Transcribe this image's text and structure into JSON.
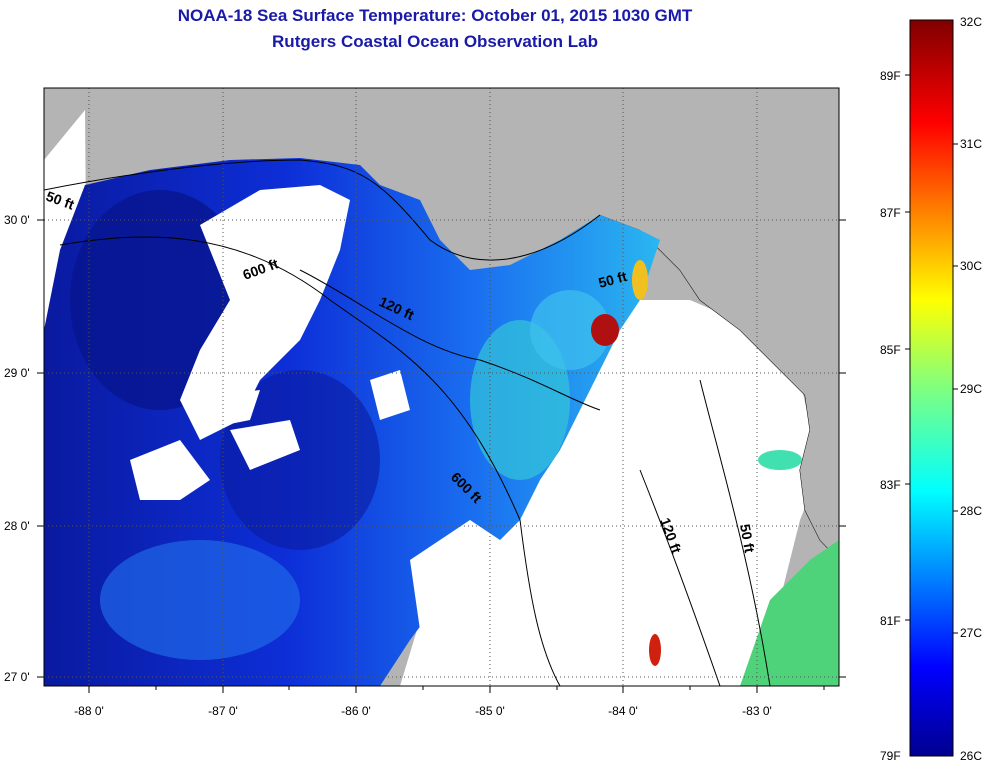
{
  "title_line1": "NOAA-18 Sea Surface Temperature:  October 01, 2015 1030 GMT",
  "title_line2": "Rutgers Coastal Ocean Observation Lab",
  "axes": {
    "x_ticks": [
      "-88 0'",
      "-87 0'",
      "-86 0'",
      "-85 0'",
      "-84 0'",
      "-83 0'"
    ],
    "y_ticks": [
      "30 0'",
      "29 0'",
      "28 0'",
      "27 0'"
    ]
  },
  "contours": [
    "50 ft",
    "600 ft",
    "120 ft",
    "50 ft",
    "600 ft",
    "120 ft",
    "50 ft"
  ],
  "colorbar": {
    "fahrenheit": [
      "89F",
      "87F",
      "85F",
      "83F",
      "81F",
      "79F"
    ],
    "celsius": [
      "32C",
      "31C",
      "30C",
      "29C",
      "28C",
      "27C",
      "26C"
    ]
  },
  "colors": {
    "land": "#b4b4b4",
    "cloud": "#ffffff",
    "title": "#1a1aa8"
  }
}
